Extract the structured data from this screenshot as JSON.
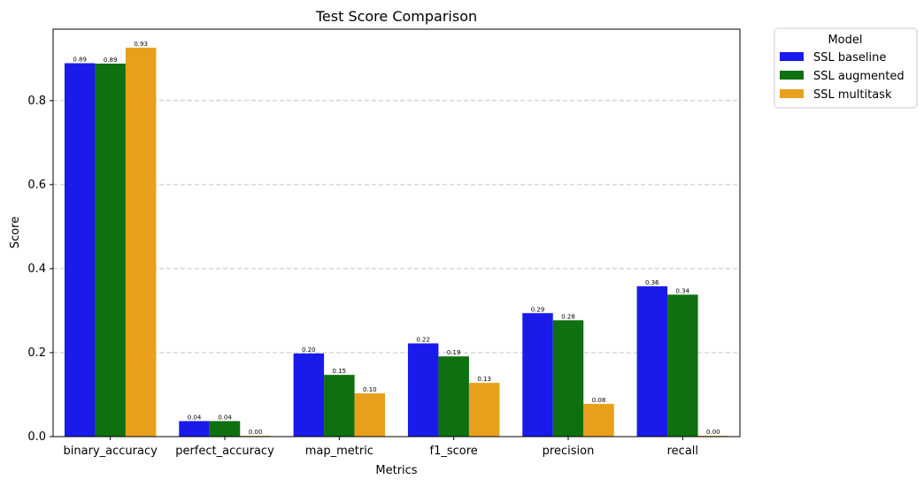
{
  "chart_data": {
    "type": "bar",
    "title": "Test Score Comparison",
    "xlabel": "Metrics",
    "ylabel": "Score",
    "categories": [
      "binary_accuracy",
      "perfect_accuracy",
      "map_metric",
      "f1_score",
      "precision",
      "recall"
    ],
    "series": [
      {
        "name": "SSL baseline",
        "color": "#1a1aeb",
        "values": [
          0.889,
          0.037,
          0.198,
          0.222,
          0.294,
          0.358
        ],
        "labels": [
          "0.89",
          "0.04",
          "0.20",
          "0.22",
          "0.29",
          "0.36"
        ]
      },
      {
        "name": "SSL augmented",
        "color": "#0e700e",
        "values": [
          0.888,
          0.037,
          0.147,
          0.191,
          0.277,
          0.338
        ],
        "labels": [
          "0.89",
          "0.04",
          "0.15",
          "0.19",
          "0.28",
          "0.34"
        ]
      },
      {
        "name": "SSL multitask",
        "color": "#e8a01c",
        "values": [
          0.926,
          0.002,
          0.103,
          0.128,
          0.078,
          0.002
        ],
        "labels": [
          "0.93",
          "0.00",
          "0.10",
          "0.13",
          "0.08",
          "0.00"
        ]
      }
    ],
    "ylim": [
      0,
      0.97
    ],
    "yticks": [
      0.0,
      0.2,
      0.4,
      0.6,
      0.8
    ],
    "ytick_labels": [
      "0.0",
      "0.2",
      "0.4",
      "0.6",
      "0.8"
    ],
    "grid": "y-dashed",
    "legend": {
      "title": "Model",
      "placement": "outside-top-right"
    }
  }
}
